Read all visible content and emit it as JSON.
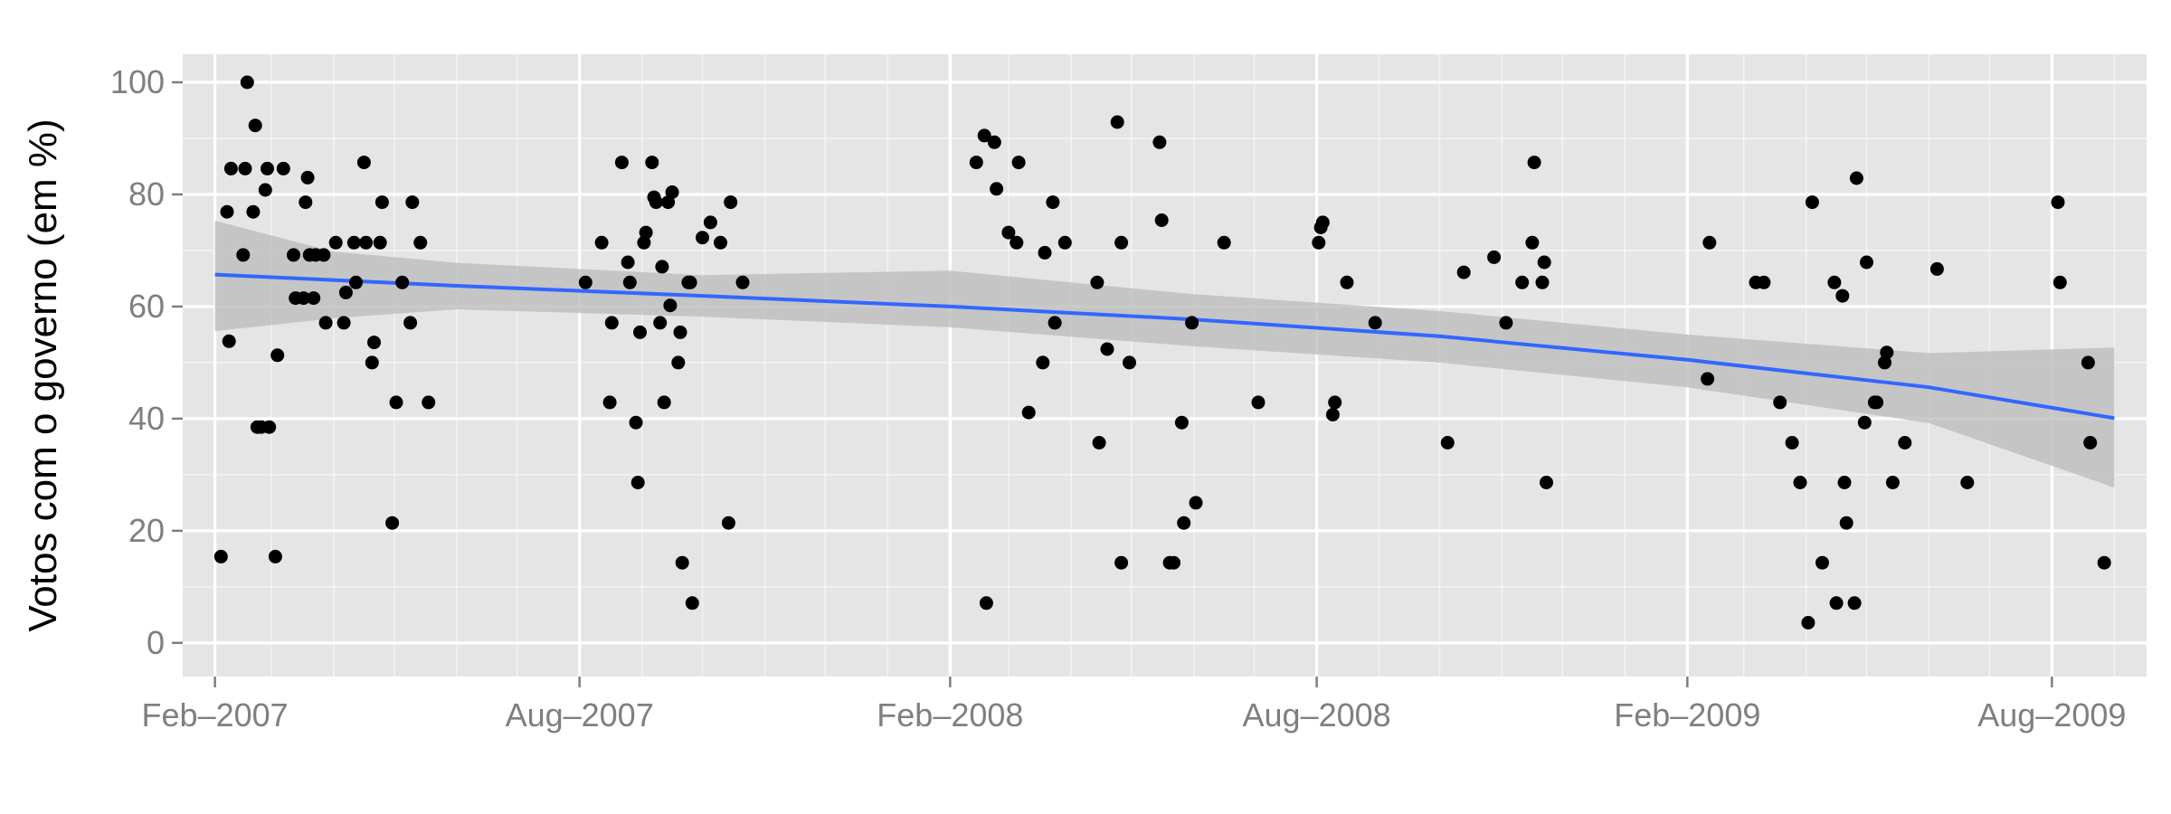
{
  "chart_data": {
    "type": "scatter",
    "title": "",
    "xlabel": "",
    "ylabel": "Votos com o governo (em %)",
    "xlim": [
      "2007-01-16",
      "2009-09-17"
    ],
    "ylim": [
      -6,
      105
    ],
    "grid": true,
    "legend": "none",
    "x_ticks": [
      {
        "date": "2007-02-01",
        "label": "Feb–2007"
      },
      {
        "date": "2007-08-01",
        "label": "Aug–2007"
      },
      {
        "date": "2008-02-01",
        "label": "Feb–2008"
      },
      {
        "date": "2008-08-01",
        "label": "Aug–2008"
      },
      {
        "date": "2009-02-01",
        "label": "Feb–2009"
      },
      {
        "date": "2009-08-01",
        "label": "Aug–2009"
      }
    ],
    "y_ticks": [
      0,
      20,
      40,
      60,
      80,
      100
    ],
    "colors": {
      "panel": "#e5e5e5",
      "grid": "#ffffff",
      "points": "#000000",
      "trend": "#3366ff",
      "band": "#bdbdbd"
    },
    "points": [
      {
        "x": "2007-02-04",
        "y": 15.4
      },
      {
        "x": "2007-02-07",
        "y": 76.9
      },
      {
        "x": "2007-02-08",
        "y": 53.8
      },
      {
        "x": "2007-02-09",
        "y": 84.6
      },
      {
        "x": "2007-02-15",
        "y": 69.2
      },
      {
        "x": "2007-02-16",
        "y": 84.6
      },
      {
        "x": "2007-02-17",
        "y": 100
      },
      {
        "x": "2007-02-20",
        "y": 76.9
      },
      {
        "x": "2007-02-21",
        "y": 92.3
      },
      {
        "x": "2007-02-22",
        "y": 38.5
      },
      {
        "x": "2007-02-24",
        "y": 38.5
      },
      {
        "x": "2007-02-26",
        "y": 80.8
      },
      {
        "x": "2007-02-27",
        "y": 84.6
      },
      {
        "x": "2007-02-28",
        "y": 38.5
      },
      {
        "x": "2007-03-03",
        "y": 15.4
      },
      {
        "x": "2007-03-04",
        "y": 51.3
      },
      {
        "x": "2007-03-07",
        "y": 84.6
      },
      {
        "x": "2007-03-12",
        "y": 69.2
      },
      {
        "x": "2007-03-13",
        "y": 61.5
      },
      {
        "x": "2007-03-17",
        "y": 61.5
      },
      {
        "x": "2007-03-18",
        "y": 78.6
      },
      {
        "x": "2007-03-19",
        "y": 83
      },
      {
        "x": "2007-03-20",
        "y": 69.2
      },
      {
        "x": "2007-03-22",
        "y": 61.5
      },
      {
        "x": "2007-03-23",
        "y": 69.2
      },
      {
        "x": "2007-03-27",
        "y": 69.2
      },
      {
        "x": "2007-03-28",
        "y": 57.1
      },
      {
        "x": "2007-04-02",
        "y": 71.4
      },
      {
        "x": "2007-04-06",
        "y": 57.1
      },
      {
        "x": "2007-04-07",
        "y": 62.5
      },
      {
        "x": "2007-04-11",
        "y": 71.4
      },
      {
        "x": "2007-04-12",
        "y": 64.3
      },
      {
        "x": "2007-04-16",
        "y": 85.7
      },
      {
        "x": "2007-04-17",
        "y": 71.4
      },
      {
        "x": "2007-04-20",
        "y": 50
      },
      {
        "x": "2007-04-21",
        "y": 53.6
      },
      {
        "x": "2007-04-24",
        "y": 71.4
      },
      {
        "x": "2007-04-25",
        "y": 78.6
      },
      {
        "x": "2007-04-30",
        "y": 21.4
      },
      {
        "x": "2007-05-02",
        "y": 42.9
      },
      {
        "x": "2007-05-05",
        "y": 64.3
      },
      {
        "x": "2007-05-09",
        "y": 57.1
      },
      {
        "x": "2007-05-10",
        "y": 78.6
      },
      {
        "x": "2007-05-14",
        "y": 71.4
      },
      {
        "x": "2007-05-18",
        "y": 42.9
      },
      {
        "x": "2007-08-04",
        "y": 64.3
      },
      {
        "x": "2007-08-12",
        "y": 71.4
      },
      {
        "x": "2007-08-16",
        "y": 42.9
      },
      {
        "x": "2007-08-17",
        "y": 57.1
      },
      {
        "x": "2007-08-22",
        "y": 85.7
      },
      {
        "x": "2007-08-25",
        "y": 67.9
      },
      {
        "x": "2007-08-26",
        "y": 64.3
      },
      {
        "x": "2007-08-29",
        "y": 39.3
      },
      {
        "x": "2007-08-30",
        "y": 28.6
      },
      {
        "x": "2007-08-31",
        "y": 55.4
      },
      {
        "x": "2007-09-02",
        "y": 71.4
      },
      {
        "x": "2007-09-03",
        "y": 73.2
      },
      {
        "x": "2007-09-06",
        "y": 85.7
      },
      {
        "x": "2007-09-07",
        "y": 79.5
      },
      {
        "x": "2007-09-08",
        "y": 78.6
      },
      {
        "x": "2007-09-10",
        "y": 57.1
      },
      {
        "x": "2007-09-11",
        "y": 67.1
      },
      {
        "x": "2007-09-12",
        "y": 42.9
      },
      {
        "x": "2007-09-14",
        "y": 78.6
      },
      {
        "x": "2007-09-15",
        "y": 60.2
      },
      {
        "x": "2007-09-16",
        "y": 80.4
      },
      {
        "x": "2007-09-19",
        "y": 50
      },
      {
        "x": "2007-09-20",
        "y": 55.4
      },
      {
        "x": "2007-09-21",
        "y": 14.3
      },
      {
        "x": "2007-09-24",
        "y": 64.3
      },
      {
        "x": "2007-09-25",
        "y": 64.3
      },
      {
        "x": "2007-09-26",
        "y": 7.1
      },
      {
        "x": "2007-10-01",
        "y": 72.3
      },
      {
        "x": "2007-10-05",
        "y": 75
      },
      {
        "x": "2007-10-10",
        "y": 71.4
      },
      {
        "x": "2007-10-14",
        "y": 21.4
      },
      {
        "x": "2007-10-15",
        "y": 78.6
      },
      {
        "x": "2007-10-21",
        "y": 64.3
      },
      {
        "x": "2008-02-14",
        "y": 85.7
      },
      {
        "x": "2008-02-18",
        "y": 90.5
      },
      {
        "x": "2008-02-19",
        "y": 7.1
      },
      {
        "x": "2008-02-23",
        "y": 89.3
      },
      {
        "x": "2008-02-24",
        "y": 81
      },
      {
        "x": "2008-03-01",
        "y": 73.2
      },
      {
        "x": "2008-03-05",
        "y": 71.4
      },
      {
        "x": "2008-03-06",
        "y": 85.7
      },
      {
        "x": "2008-03-11",
        "y": 41.1
      },
      {
        "x": "2008-03-18",
        "y": 50
      },
      {
        "x": "2008-03-19",
        "y": 69.6
      },
      {
        "x": "2008-03-23",
        "y": 78.6
      },
      {
        "x": "2008-03-24",
        "y": 57.1
      },
      {
        "x": "2008-03-29",
        "y": 71.4
      },
      {
        "x": "2008-04-14",
        "y": 64.3
      },
      {
        "x": "2008-04-15",
        "y": 35.7
      },
      {
        "x": "2008-04-19",
        "y": 52.4
      },
      {
        "x": "2008-04-24",
        "y": 92.9
      },
      {
        "x": "2008-04-26",
        "y": 71.4
      },
      {
        "x": "2008-04-26",
        "y": 14.3
      },
      {
        "x": "2008-04-30",
        "y": 50
      },
      {
        "x": "2008-05-15",
        "y": 89.3
      },
      {
        "x": "2008-05-16",
        "y": 75.4
      },
      {
        "x": "2008-05-20",
        "y": 14.3
      },
      {
        "x": "2008-05-22",
        "y": 14.3
      },
      {
        "x": "2008-05-26",
        "y": 39.3
      },
      {
        "x": "2008-05-27",
        "y": 21.4
      },
      {
        "x": "2008-05-31",
        "y": 57.1
      },
      {
        "x": "2008-06-02",
        "y": 25
      },
      {
        "x": "2008-06-16",
        "y": 71.4
      },
      {
        "x": "2008-07-03",
        "y": 42.9
      },
      {
        "x": "2008-08-02",
        "y": 71.4
      },
      {
        "x": "2008-08-03",
        "y": 74.1
      },
      {
        "x": "2008-08-04",
        "y": 75
      },
      {
        "x": "2008-08-09",
        "y": 40.7
      },
      {
        "x": "2008-08-10",
        "y": 42.9
      },
      {
        "x": "2008-08-16",
        "y": 64.3
      },
      {
        "x": "2008-08-30",
        "y": 57.1
      },
      {
        "x": "2008-10-05",
        "y": 35.7
      },
      {
        "x": "2008-10-13",
        "y": 66.1
      },
      {
        "x": "2008-10-28",
        "y": 68.8
      },
      {
        "x": "2008-11-03",
        "y": 57.1
      },
      {
        "x": "2008-11-11",
        "y": 64.3
      },
      {
        "x": "2008-11-16",
        "y": 71.4
      },
      {
        "x": "2008-11-17",
        "y": 85.7
      },
      {
        "x": "2008-11-21",
        "y": 64.3
      },
      {
        "x": "2008-11-22",
        "y": 67.9
      },
      {
        "x": "2008-11-23",
        "y": 28.6
      },
      {
        "x": "2009-02-11",
        "y": 47.1
      },
      {
        "x": "2009-02-12",
        "y": 71.4
      },
      {
        "x": "2009-03-07",
        "y": 64.3
      },
      {
        "x": "2009-03-11",
        "y": 64.3
      },
      {
        "x": "2009-03-19",
        "y": 42.9
      },
      {
        "x": "2009-03-25",
        "y": 35.7
      },
      {
        "x": "2009-03-29",
        "y": 28.6
      },
      {
        "x": "2009-04-02",
        "y": 3.6
      },
      {
        "x": "2009-04-04",
        "y": 78.6
      },
      {
        "x": "2009-04-09",
        "y": 14.3
      },
      {
        "x": "2009-04-15",
        "y": 64.3
      },
      {
        "x": "2009-04-16",
        "y": 7.1
      },
      {
        "x": "2009-04-19",
        "y": 61.9
      },
      {
        "x": "2009-04-20",
        "y": 28.6
      },
      {
        "x": "2009-04-21",
        "y": 21.4
      },
      {
        "x": "2009-04-25",
        "y": 7.1
      },
      {
        "x": "2009-04-26",
        "y": 82.9
      },
      {
        "x": "2009-04-30",
        "y": 39.3
      },
      {
        "x": "2009-05-01",
        "y": 67.9
      },
      {
        "x": "2009-05-05",
        "y": 42.9
      },
      {
        "x": "2009-05-06",
        "y": 42.9
      },
      {
        "x": "2009-05-10",
        "y": 50
      },
      {
        "x": "2009-05-11",
        "y": 51.8
      },
      {
        "x": "2009-05-14",
        "y": 28.6
      },
      {
        "x": "2009-05-20",
        "y": 35.7
      },
      {
        "x": "2009-06-05",
        "y": 66.7
      },
      {
        "x": "2009-06-20",
        "y": 28.6
      },
      {
        "x": "2009-08-04",
        "y": 78.6
      },
      {
        "x": "2009-08-05",
        "y": 64.3
      },
      {
        "x": "2009-08-19",
        "y": 50
      },
      {
        "x": "2009-08-20",
        "y": 35.7
      },
      {
        "x": "2009-08-27",
        "y": 14.3
      }
    ],
    "trend": [
      {
        "x": "2007-02-01",
        "y": 65.7
      },
      {
        "x": "2007-06-01",
        "y": 63.7
      },
      {
        "x": "2007-10-01",
        "y": 61.9
      },
      {
        "x": "2008-02-01",
        "y": 60
      },
      {
        "x": "2008-06-01",
        "y": 57.7
      },
      {
        "x": "2008-10-01",
        "y": 54.7
      },
      {
        "x": "2009-02-01",
        "y": 50.5
      },
      {
        "x": "2009-06-01",
        "y": 45.6
      },
      {
        "x": "2009-09-01",
        "y": 40.1
      }
    ],
    "band": [
      {
        "x": "2007-02-01",
        "lo": 55.6,
        "hi": 75.3
      },
      {
        "x": "2007-04-01",
        "lo": 57.9,
        "hi": 69.8
      },
      {
        "x": "2007-06-01",
        "lo": 59.5,
        "hi": 67.8
      },
      {
        "x": "2007-10-01",
        "lo": 58.2,
        "hi": 65.6
      },
      {
        "x": "2008-02-01",
        "lo": 56.3,
        "hi": 66.4
      },
      {
        "x": "2008-06-01",
        "lo": 52.9,
        "hi": 62.2
      },
      {
        "x": "2008-10-01",
        "lo": 50,
        "hi": 59.2
      },
      {
        "x": "2009-02-01",
        "lo": 45.6,
        "hi": 55
      },
      {
        "x": "2009-06-01",
        "lo": 39.2,
        "hi": 51.7
      },
      {
        "x": "2009-09-01",
        "lo": 27.7,
        "hi": 52.7
      }
    ]
  }
}
